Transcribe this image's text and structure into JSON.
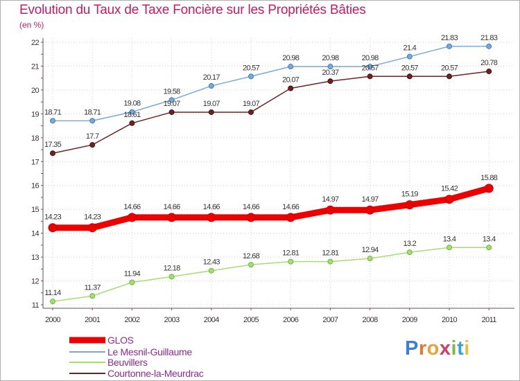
{
  "chart_data": {
    "type": "line",
    "title": "Evolution du Taux de Taxe Foncière sur les Propriétés Bâties",
    "ylabel": "(en %)",
    "xlabel": "",
    "categories": [
      "2000",
      "2001",
      "2002",
      "2003",
      "2004",
      "2005",
      "2006",
      "2007",
      "2008",
      "2009",
      "2010",
      "2011"
    ],
    "ylim": [
      11,
      22
    ],
    "yticks": [
      "11",
      "12",
      "13",
      "14",
      "15",
      "16",
      "17",
      "18",
      "19",
      "20",
      "21",
      "22"
    ],
    "legend_position": "bottom-left",
    "series": [
      {
        "name": "GLOS",
        "color": "#ee0000",
        "values": [
          14.23,
          14.23,
          14.66,
          14.66,
          14.66,
          14.66,
          14.66,
          14.97,
          14.97,
          15.19,
          15.42,
          15.88
        ],
        "labels": [
          "14.23",
          "14.23",
          "14.66",
          "14.66",
          "14.66",
          "14.66",
          "14.66",
          "14.97",
          "14.97",
          "15.19",
          "15.42",
          "15.88"
        ]
      },
      {
        "name": "Le Mesnil-Guillaume",
        "color": "#7aa9d6",
        "values": [
          18.71,
          18.71,
          19.08,
          19.58,
          20.17,
          20.57,
          20.98,
          20.98,
          20.98,
          21.4,
          21.83,
          21.83
        ],
        "labels": [
          "18.71",
          "18.71",
          "19.08",
          "19.58",
          "20.17",
          "20.57",
          "20.98",
          "20.98",
          "20.98",
          "21.4",
          "21.83",
          "21.83"
        ]
      },
      {
        "name": "Beuvillers",
        "color": "#a6dc72",
        "values": [
          11.14,
          11.37,
          11.94,
          12.18,
          12.43,
          12.68,
          12.81,
          12.81,
          12.94,
          13.2,
          13.4,
          13.4
        ],
        "labels": [
          "11.14",
          "11.37",
          "11.94",
          "12.18",
          "12.43",
          "12.68",
          "12.81",
          "12.81",
          "12.94",
          "13.2",
          "13.4",
          "13.4"
        ]
      },
      {
        "name": "Courtonne-la-Meurdrac",
        "color": "#6e2222",
        "values": [
          17.35,
          17.7,
          18.61,
          19.07,
          19.07,
          19.07,
          20.07,
          20.37,
          20.57,
          20.57,
          20.57,
          20.78
        ],
        "labels": [
          "17.35",
          "17.7",
          "18.61",
          "19.07",
          "19.07",
          "19.07",
          "20.07",
          "20.37",
          "20.57",
          "20.57",
          "20.57",
          "20.78"
        ]
      }
    ]
  },
  "logo": {
    "letters": [
      "P",
      "r",
      "o",
      "x",
      "i",
      "t",
      "i"
    ]
  },
  "colors": {
    "title": "#c71a63",
    "axis": "#555555",
    "grid": "#cfcfcf",
    "legend_text": "#8e2a8e"
  }
}
